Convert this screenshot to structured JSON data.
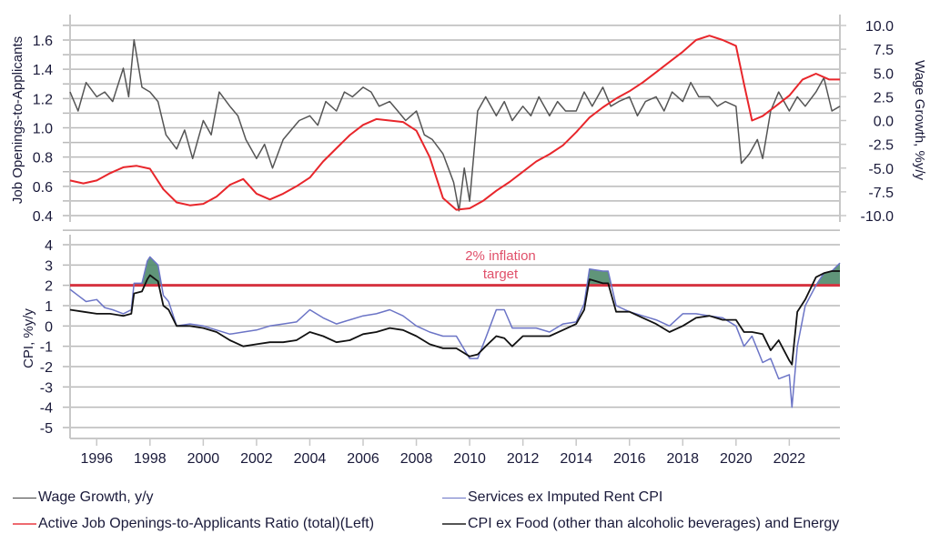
{
  "chart_data": [
    {
      "type": "line",
      "panel": "top",
      "ylabel_left": "Job Openings-to-Applicants",
      "ylabel_right": "Wage Growth, %y/y",
      "ylim_left": [
        0.3,
        1.7
      ],
      "ylim_right": [
        -10.0,
        10.0
      ],
      "yticks_left": [
        "1.6",
        "1.4",
        "1.2",
        "1.0",
        "0.8",
        "0.6",
        "0.4"
      ],
      "yticks_right": [
        "10.0",
        "7.5",
        "5.0",
        "2.5",
        "0.0",
        "-2.5",
        "-5.0",
        "-7.5",
        "-10.0"
      ],
      "grid": true,
      "series": [
        {
          "name": "Active Job Openings-to-Applicants Ratio (total)(Left)",
          "axis": "left",
          "color": "#e8262b",
          "x": [
            1995.0,
            1995.5,
            1996.0,
            1996.5,
            1997.0,
            1997.5,
            1998.0,
            1998.5,
            1999.0,
            1999.5,
            2000.0,
            2000.5,
            2001.0,
            2001.5,
            2002.0,
            2002.5,
            2003.0,
            2003.5,
            2004.0,
            2004.5,
            2005.0,
            2005.5,
            2006.0,
            2006.5,
            2007.0,
            2007.5,
            2008.0,
            2008.5,
            2009.0,
            2009.5,
            2010.0,
            2010.5,
            2011.0,
            2011.5,
            2012.0,
            2012.5,
            2013.0,
            2013.5,
            2014.0,
            2014.5,
            2015.0,
            2015.5,
            2016.0,
            2016.5,
            2017.0,
            2017.5,
            2018.0,
            2018.5,
            2019.0,
            2019.5,
            2020.0,
            2020.3,
            2020.6,
            2021.0,
            2021.5,
            2022.0,
            2022.5,
            2023.0,
            2023.5,
            2023.9
          ],
          "values": [
            0.64,
            0.62,
            0.64,
            0.69,
            0.73,
            0.74,
            0.72,
            0.58,
            0.49,
            0.47,
            0.48,
            0.53,
            0.61,
            0.65,
            0.55,
            0.51,
            0.55,
            0.6,
            0.66,
            0.77,
            0.86,
            0.95,
            1.02,
            1.06,
            1.05,
            1.04,
            0.98,
            0.8,
            0.52,
            0.44,
            0.45,
            0.5,
            0.57,
            0.63,
            0.7,
            0.77,
            0.82,
            0.88,
            0.97,
            1.07,
            1.14,
            1.2,
            1.25,
            1.31,
            1.38,
            1.45,
            1.52,
            1.6,
            1.63,
            1.6,
            1.56,
            1.3,
            1.05,
            1.08,
            1.15,
            1.22,
            1.33,
            1.37,
            1.33,
            1.33
          ]
        },
        {
          "name": "Wage Growth, y/y",
          "axis": "right",
          "color": "#555555",
          "x": [
            1995.0,
            1995.3,
            1995.6,
            1996.0,
            1996.3,
            1996.6,
            1997.0,
            1997.2,
            1997.4,
            1997.7,
            1998.0,
            1998.3,
            1998.6,
            1999.0,
            1999.3,
            1999.6,
            2000.0,
            2000.3,
            2000.6,
            2001.0,
            2001.3,
            2001.6,
            2002.0,
            2002.3,
            2002.6,
            2003.0,
            2003.3,
            2003.6,
            2004.0,
            2004.3,
            2004.6,
            2005.0,
            2005.3,
            2005.6,
            2006.0,
            2006.3,
            2006.6,
            2007.0,
            2007.3,
            2007.6,
            2008.0,
            2008.3,
            2008.6,
            2009.0,
            2009.2,
            2009.4,
            2009.6,
            2009.8,
            2010.0,
            2010.3,
            2010.6,
            2011.0,
            2011.3,
            2011.6,
            2012.0,
            2012.3,
            2012.6,
            2013.0,
            2013.3,
            2013.6,
            2014.0,
            2014.3,
            2014.6,
            2015.0,
            2015.3,
            2015.6,
            2016.0,
            2016.3,
            2016.6,
            2017.0,
            2017.3,
            2017.6,
            2018.0,
            2018.3,
            2018.6,
            2019.0,
            2019.3,
            2019.6,
            2020.0,
            2020.2,
            2020.5,
            2020.8,
            2021.0,
            2021.3,
            2021.6,
            2022.0,
            2022.3,
            2022.6,
            2023.0,
            2023.3,
            2023.6,
            2023.9
          ],
          "values": [
            3.0,
            1.0,
            4.0,
            2.5,
            3.0,
            2.0,
            5.5,
            2.5,
            8.5,
            3.5,
            3.0,
            2.0,
            -1.5,
            -3.0,
            -1.0,
            -4.0,
            0.0,
            -1.5,
            3.0,
            1.5,
            0.5,
            -2.0,
            -4.0,
            -2.5,
            -5.0,
            -2.0,
            -1.0,
            0.0,
            0.5,
            -0.5,
            2.0,
            1.0,
            3.0,
            2.5,
            3.5,
            3.0,
            1.5,
            2.0,
            1.0,
            0.0,
            1.0,
            -1.5,
            -2.0,
            -3.5,
            -5.0,
            -6.5,
            -9.5,
            -5.0,
            -8.5,
            1.0,
            2.5,
            0.5,
            2.0,
            0.0,
            1.5,
            0.5,
            2.5,
            0.5,
            2.0,
            1.0,
            1.0,
            3.0,
            1.5,
            3.5,
            1.5,
            2.0,
            2.5,
            0.5,
            2.0,
            2.5,
            1.0,
            3.0,
            2.0,
            4.0,
            2.5,
            2.5,
            1.5,
            2.0,
            1.5,
            -4.5,
            -3.5,
            -2.0,
            -4.0,
            1.0,
            3.0,
            1.0,
            2.5,
            1.5,
            3.0,
            4.5,
            1.0,
            1.5
          ]
        }
      ]
    },
    {
      "type": "line",
      "panel": "bottom",
      "ylabel": "CPI, %y/y",
      "ylim": [
        -5.5,
        4.3
      ],
      "yticks": [
        "4",
        "3",
        "2",
        "1",
        "0",
        "-1",
        "-2",
        "-3",
        "-4",
        "-5"
      ],
      "grid": true,
      "xlim": [
        1995.0,
        2023.9
      ],
      "xticks": [
        "1996",
        "1998",
        "2000",
        "2002",
        "2004",
        "2006",
        "2008",
        "2010",
        "2012",
        "2014",
        "2016",
        "2018",
        "2020",
        "2022"
      ],
      "reference_line": {
        "value": 2,
        "color": "#d63441",
        "label": "2% inflation target"
      },
      "shaded_fill": {
        "color": "#4f8a6a",
        "description": "area where both series exceed 2% target"
      },
      "series": [
        {
          "name": "Services ex Imputed Rent CPI",
          "color": "#6b74c6",
          "x": [
            1995.0,
            1995.3,
            1995.6,
            1996.0,
            1996.3,
            1996.6,
            1997.0,
            1997.3,
            1997.4,
            1997.7,
            1997.9,
            1998.0,
            1998.3,
            1998.5,
            1998.7,
            1999.0,
            1999.5,
            2000.0,
            2000.5,
            2001.0,
            2001.5,
            2002.0,
            2002.5,
            2003.0,
            2003.5,
            2004.0,
            2004.5,
            2005.0,
            2005.5,
            2006.0,
            2006.5,
            2007.0,
            2007.5,
            2008.0,
            2008.5,
            2009.0,
            2009.5,
            2010.0,
            2010.3,
            2010.6,
            2011.0,
            2011.3,
            2011.6,
            2012.0,
            2012.5,
            2013.0,
            2013.5,
            2014.0,
            2014.3,
            2014.5,
            2015.0,
            2015.2,
            2015.5,
            2016.0,
            2016.5,
            2017.0,
            2017.5,
            2018.0,
            2018.5,
            2019.0,
            2019.5,
            2020.0,
            2020.3,
            2020.6,
            2021.0,
            2021.3,
            2021.6,
            2022.0,
            2022.1,
            2022.3,
            2022.6,
            2023.0,
            2023.3,
            2023.6,
            2023.9
          ],
          "values": [
            1.8,
            1.5,
            1.2,
            1.3,
            0.9,
            0.8,
            0.6,
            0.8,
            2.1,
            2.1,
            3.2,
            3.4,
            3.0,
            1.5,
            1.2,
            0.0,
            0.1,
            0.0,
            -0.2,
            -0.4,
            -0.3,
            -0.2,
            0.0,
            0.1,
            0.2,
            0.8,
            0.4,
            0.1,
            0.3,
            0.5,
            0.6,
            0.8,
            0.5,
            0.0,
            -0.3,
            -0.5,
            -0.5,
            -1.6,
            -1.6,
            -0.6,
            0.8,
            0.8,
            -0.1,
            -0.1,
            -0.1,
            -0.3,
            0.1,
            0.2,
            1.1,
            2.8,
            2.7,
            2.7,
            1.0,
            0.7,
            0.5,
            0.3,
            0.0,
            0.6,
            0.6,
            0.5,
            0.4,
            0.0,
            -1.0,
            -0.5,
            -1.8,
            -1.6,
            -2.6,
            -2.4,
            -4.0,
            -1.0,
            1.0,
            2.0,
            2.6,
            2.7,
            3.1
          ]
        },
        {
          "name": "CPI ex Food (other than alcoholic beverages) and Energy",
          "color": "#111111",
          "x": [
            1995.0,
            1995.5,
            1996.0,
            1996.5,
            1997.0,
            1997.3,
            1997.4,
            1997.7,
            1997.9,
            1998.0,
            1998.3,
            1998.5,
            1998.7,
            1999.0,
            1999.5,
            2000.0,
            2000.5,
            2001.0,
            2001.5,
            2002.0,
            2002.5,
            2003.0,
            2003.5,
            2004.0,
            2004.5,
            2005.0,
            2005.5,
            2006.0,
            2006.5,
            2007.0,
            2007.5,
            2008.0,
            2008.5,
            2009.0,
            2009.5,
            2010.0,
            2010.3,
            2010.6,
            2011.0,
            2011.3,
            2011.6,
            2012.0,
            2012.5,
            2013.0,
            2013.5,
            2014.0,
            2014.3,
            2014.5,
            2015.0,
            2015.2,
            2015.5,
            2016.0,
            2016.5,
            2017.0,
            2017.5,
            2018.0,
            2018.5,
            2019.0,
            2019.5,
            2020.0,
            2020.3,
            2020.6,
            2021.0,
            2021.3,
            2021.6,
            2022.0,
            2022.1,
            2022.3,
            2022.6,
            2023.0,
            2023.3,
            2023.6,
            2023.9
          ],
          "values": [
            0.8,
            0.7,
            0.6,
            0.6,
            0.5,
            0.6,
            1.6,
            1.7,
            2.3,
            2.5,
            2.2,
            1.0,
            0.8,
            0.0,
            0.0,
            -0.1,
            -0.3,
            -0.7,
            -1.0,
            -0.9,
            -0.8,
            -0.8,
            -0.7,
            -0.3,
            -0.5,
            -0.8,
            -0.7,
            -0.4,
            -0.3,
            -0.1,
            -0.2,
            -0.5,
            -0.9,
            -1.1,
            -1.1,
            -1.5,
            -1.4,
            -1.0,
            -0.5,
            -0.6,
            -1.0,
            -0.5,
            -0.5,
            -0.5,
            -0.2,
            0.1,
            0.8,
            2.3,
            2.1,
            2.1,
            0.7,
            0.7,
            0.4,
            0.1,
            -0.3,
            0.0,
            0.4,
            0.5,
            0.3,
            0.3,
            -0.3,
            -0.3,
            -0.4,
            -1.2,
            -0.7,
            -1.7,
            -1.9,
            0.7,
            1.3,
            2.4,
            2.6,
            2.7,
            2.7
          ]
        }
      ]
    }
  ],
  "legend": [
    {
      "label": "Wage Growth, y/y",
      "color": "#555555"
    },
    {
      "label": "Services ex Imputed Rent CPI",
      "color": "#6b74c6"
    },
    {
      "label": "Active Job Openings-to-Applicants Ratio (total)(Left)",
      "color": "#e8262b"
    },
    {
      "label": "CPI ex Food (other than alcoholic beverages) and Energy",
      "color": "#444444"
    }
  ],
  "annotation": {
    "line1": "2% inflation",
    "line2": "target"
  }
}
